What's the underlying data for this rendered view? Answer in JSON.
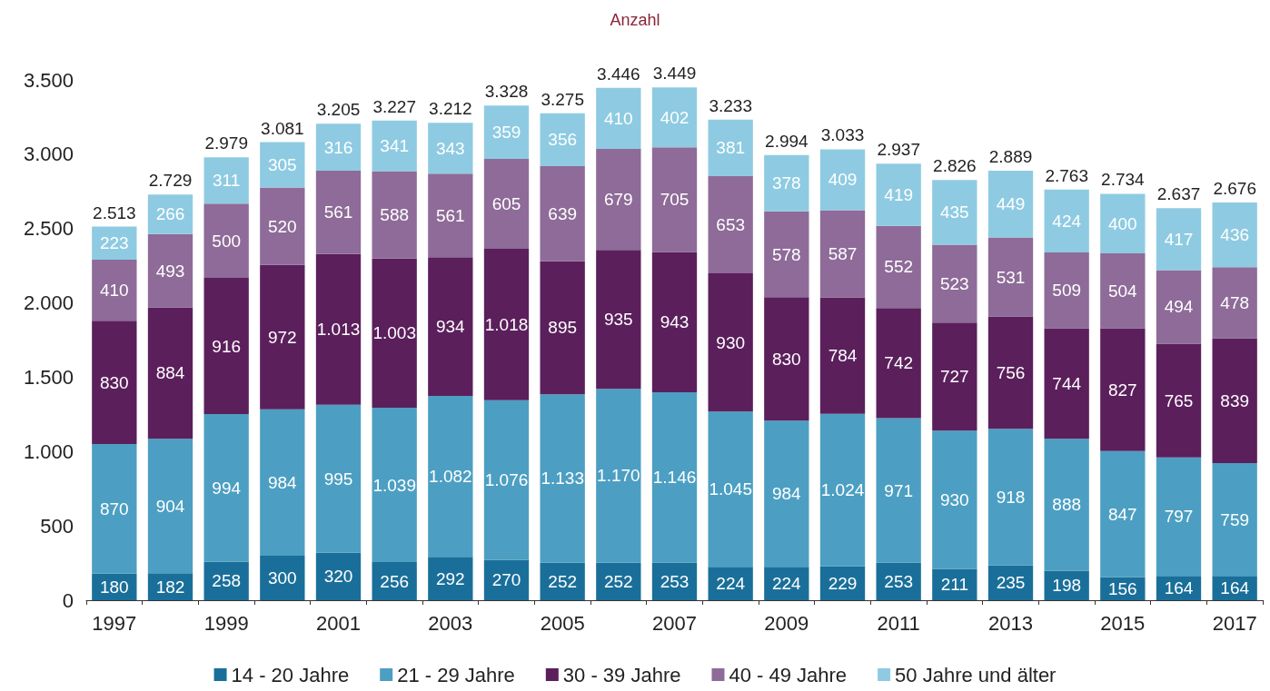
{
  "chart_data": {
    "type": "bar",
    "title": "Anzahl",
    "stacked": true,
    "grid": false,
    "legend": "bottom",
    "categories": [
      "1997",
      null,
      "1999",
      null,
      "2001",
      null,
      "2003",
      null,
      "2005",
      null,
      "2007",
      null,
      "2009",
      null,
      "2011",
      null,
      "2013",
      null,
      "2015",
      null,
      "2017"
    ],
    "ylim": [
      0,
      3500
    ],
    "yticks": [
      0,
      500,
      {
        "value": 1000,
        "label": "1.000"
      },
      {
        "value": 1500,
        "label": "1.500"
      },
      {
        "value": 2000,
        "label": "2.000"
      },
      {
        "value": 2500,
        "label": "2.500"
      },
      {
        "value": 3000,
        "label": "3.000"
      },
      {
        "value": 3500,
        "label": "3.500"
      }
    ],
    "series": [
      {
        "name": "14 - 20 Jahre",
        "color": "#1a6f9a",
        "values": [
          180,
          182,
          258,
          300,
          320,
          256,
          292,
          270,
          252,
          252,
          253,
          224,
          224,
          229,
          253,
          211,
          235,
          198,
          156,
          164,
          164
        ],
        "value_labels": [
          "180",
          "182",
          "258",
          "300",
          "320",
          "256",
          "292",
          "270",
          "252",
          "252",
          "253",
          "224",
          "224",
          "229",
          "253",
          "211",
          "235",
          "198",
          "156",
          "164",
          "164"
        ]
      },
      {
        "name": "21 - 29 Jahre",
        "color": "#4c9fc2",
        "values": [
          870,
          904,
          994,
          984,
          995,
          1039,
          1082,
          1076,
          1133,
          1170,
          1146,
          1045,
          984,
          1024,
          971,
          930,
          918,
          888,
          847,
          797,
          759
        ],
        "value_labels": [
          "870",
          "904",
          "994",
          "984",
          "995",
          "1.039",
          "1.082",
          "1.076",
          "1.133",
          "1.170",
          "1.146",
          "1.045",
          "984",
          "1.024",
          "971",
          "930",
          "918",
          "888",
          "847",
          "797",
          "759"
        ]
      },
      {
        "name": "30 - 39 Jahre",
        "color": "#5b1f5c",
        "values": [
          830,
          884,
          916,
          972,
          1013,
          1003,
          934,
          1018,
          895,
          935,
          943,
          930,
          830,
          784,
          742,
          727,
          756,
          744,
          827,
          765,
          839
        ],
        "value_labels": [
          "830",
          "884",
          "916",
          "972",
          "1.013",
          "1.003",
          "934",
          "1.018",
          "895",
          "935",
          "943",
          "930",
          "830",
          "784",
          "742",
          "727",
          "756",
          "744",
          "827",
          "765",
          "839"
        ]
      },
      {
        "name": "40 - 49 Jahre",
        "color": "#8e6b98",
        "values": [
          410,
          493,
          500,
          520,
          561,
          588,
          561,
          605,
          639,
          679,
          705,
          653,
          578,
          587,
          552,
          523,
          531,
          509,
          504,
          494,
          478
        ],
        "value_labels": [
          "410",
          "493",
          "500",
          "520",
          "561",
          "588",
          "561",
          "605",
          "639",
          "679",
          "705",
          "653",
          "578",
          "587",
          "552",
          "523",
          "531",
          "509",
          "504",
          "494",
          "478"
        ]
      },
      {
        "name": "50 Jahre und älter",
        "color": "#8ecbe2",
        "values": [
          223,
          266,
          311,
          305,
          316,
          341,
          343,
          359,
          356,
          410,
          402,
          381,
          378,
          409,
          419,
          435,
          449,
          424,
          400,
          417,
          436
        ],
        "value_labels": [
          "223",
          "266",
          "311",
          "305",
          "316",
          "341",
          "343",
          "359",
          "356",
          "410",
          "402",
          "381",
          "378",
          "409",
          "419",
          "435",
          "449",
          "424",
          "400",
          "417",
          "436"
        ]
      }
    ],
    "totals": [
      "2.513",
      "2.729",
      "2.979",
      "3.081",
      "3.205",
      "3.227",
      "3.212",
      "3.328",
      "3.275",
      "3.446",
      "3.449",
      "3.233",
      "2.994",
      "3.033",
      "2.937",
      "2.826",
      "2.889",
      "2.763",
      "2.734",
      "2.637",
      "2.676"
    ]
  }
}
